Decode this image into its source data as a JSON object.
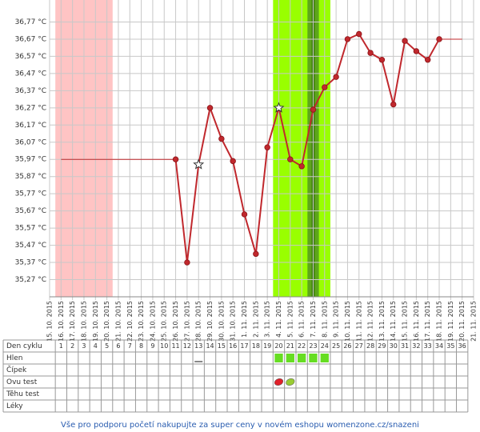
{
  "chart_data": {
    "type": "line",
    "x": [
      "15. 10. 2015",
      "16. 10. 2015",
      "17. 10. 2015",
      "18. 10. 2015",
      "19. 10. 2015",
      "20. 10. 2015",
      "21. 10. 2015",
      "22. 10. 2015",
      "23. 10. 2015",
      "24. 10. 2015",
      "25. 10. 2015",
      "26. 10. 2015",
      "27. 10. 2015",
      "28. 10. 2015",
      "29. 10. 2015",
      "30. 10. 2015",
      "31. 10. 2015",
      "1. 11. 2015",
      "2. 11. 2015",
      "3. 11. 2015",
      "4. 11. 2015",
      "5. 11. 2015",
      "6. 11. 2015",
      "7. 11. 2015",
      "8. 11. 2015",
      "9. 11. 2015",
      "10. 11. 2015",
      "11. 11. 2015",
      "12. 11. 2015",
      "13. 11. 2015",
      "14. 11. 2015",
      "15. 11. 2015",
      "16. 11. 2015",
      "17. 11. 2015",
      "18. 11. 2015",
      "19. 11. 2015",
      "20. 11. 2015",
      "21. 11. 2015"
    ],
    "values": [
      null,
      null,
      null,
      null,
      null,
      null,
      null,
      null,
      null,
      null,
      null,
      35.97,
      35.37,
      35.94,
      36.27,
      36.09,
      35.96,
      35.65,
      35.42,
      36.04,
      36.27,
      35.97,
      35.93,
      36.26,
      36.39,
      36.45,
      36.67,
      36.7,
      36.59,
      36.55,
      36.29,
      36.66,
      36.6,
      36.55,
      36.67,
      null,
      null,
      null
    ],
    "color": "#c0282d",
    "star_markers": [
      13,
      20
    ],
    "extend_line": true,
    "ylim": [
      35.17,
      36.87
    ],
    "yticks": [
      {
        "value": 35.27,
        "label": "35,27 °C"
      },
      {
        "value": 35.37,
        "label": "35,37 °C"
      },
      {
        "value": 35.47,
        "label": "35,47 °C"
      },
      {
        "value": 35.57,
        "label": "35,57 °C"
      },
      {
        "value": 35.67,
        "label": "35,67 °C"
      },
      {
        "value": 35.77,
        "label": "35,77 °C"
      },
      {
        "value": 35.87,
        "label": "35,87 °C"
      },
      {
        "value": 35.97,
        "label": "35,97 °C"
      },
      {
        "value": 36.07,
        "label": "36,07 °C"
      },
      {
        "value": 36.17,
        "label": "36,17 °C"
      },
      {
        "value": 36.27,
        "label": "36,27 °C"
      },
      {
        "value": 36.37,
        "label": "36,37 °C"
      },
      {
        "value": 36.47,
        "label": "36,47 °C"
      },
      {
        "value": 36.57,
        "label": "36,57 °C"
      },
      {
        "value": 36.67,
        "label": "36,67 °C"
      },
      {
        "value": 36.77,
        "label": "36,77 °C"
      }
    ],
    "grid": true,
    "menstruation_days": [
      1,
      5
    ],
    "fertile_days": [
      20,
      24
    ],
    "ovulation_day": 23
  },
  "table": {
    "row_labels": [
      "Den cyklu",
      "Hlen",
      "Čípek",
      "Ovu test",
      "Těhu test",
      "Léky"
    ],
    "cycle_days": [
      1,
      2,
      3,
      4,
      5,
      6,
      7,
      8,
      9,
      10,
      11,
      12,
      13,
      14,
      15,
      16,
      17,
      18,
      19,
      20,
      21,
      22,
      23,
      24,
      25,
      26,
      27,
      28,
      29,
      30,
      31,
      32,
      33,
      34,
      35,
      36
    ],
    "hlen_dash_day": 13,
    "ovu_tests": [
      {
        "day": 20,
        "color": "#e0202a"
      },
      {
        "day": 21,
        "color": "#99cc33"
      }
    ]
  },
  "footer": "Vše pro podporu početí nakupujte za super ceny v novém eshopu womenzone.cz/snazeni"
}
